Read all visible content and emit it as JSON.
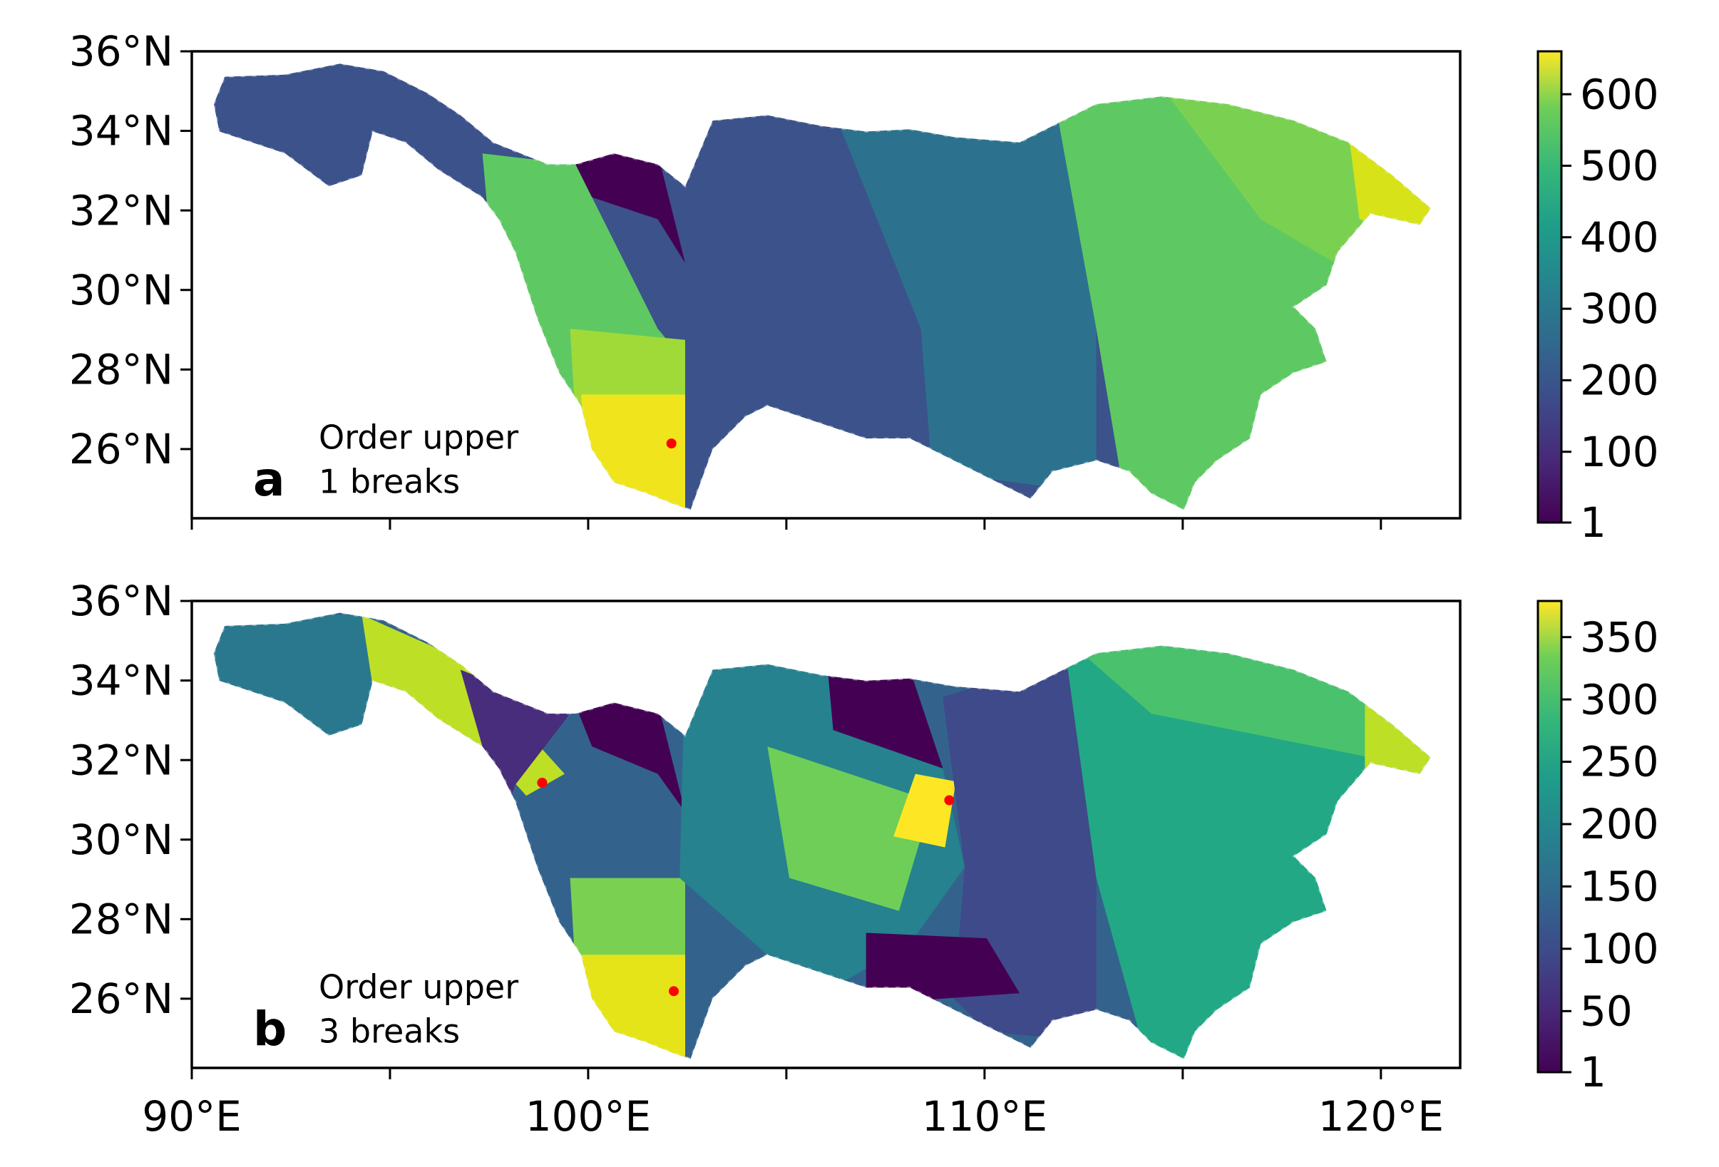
{
  "panels": [
    {
      "label": "a",
      "annotation": [
        "Order upper",
        "1 breaks"
      ],
      "xlim": [
        90,
        122
      ],
      "ylim": [
        24.26,
        36
      ],
      "xticks": [
        {
          "value": 90,
          "label": null
        },
        {
          "value": 95,
          "label": null
        },
        {
          "value": 100,
          "label": null
        },
        {
          "value": 105,
          "label": null
        },
        {
          "value": 110,
          "label": null
        },
        {
          "value": 115,
          "label": null
        },
        {
          "value": 120,
          "label": null
        }
      ],
      "yticks": [
        {
          "value": 26,
          "label": "26°N"
        },
        {
          "value": 28,
          "label": "28°N"
        },
        {
          "value": 30,
          "label": "30°N"
        },
        {
          "value": 32,
          "label": "32°N"
        },
        {
          "value": 34,
          "label": "34°N"
        },
        {
          "value": 36,
          "label": "36°N"
        }
      ],
      "breaks_lon": [
        102.1
      ],
      "breaks_lat": [
        26.14
      ],
      "break_color": "red",
      "colorbar": {
        "colormap": "viridis",
        "lim": [
          1,
          660
        ],
        "ticks": [
          1,
          100,
          200,
          300,
          400,
          500,
          600
        ]
      }
    },
    {
      "label": "b",
      "annotation": [
        "Order upper",
        "3 breaks"
      ],
      "xlim": [
        90,
        122
      ],
      "ylim": [
        24.26,
        36
      ],
      "xticks": [
        {
          "value": 90,
          "label": "90°E"
        },
        {
          "value": 95,
          "label": null
        },
        {
          "value": 100,
          "label": "100°E"
        },
        {
          "value": 105,
          "label": null
        },
        {
          "value": 110,
          "label": "110°E"
        },
        {
          "value": 115,
          "label": null
        },
        {
          "value": 120,
          "label": "120°E"
        }
      ],
      "yticks": [
        {
          "value": 26,
          "label": "26°N"
        },
        {
          "value": 28,
          "label": "28°N"
        },
        {
          "value": 30,
          "label": "30°N"
        },
        {
          "value": 32,
          "label": "32°N"
        },
        {
          "value": 34,
          "label": "34°N"
        },
        {
          "value": 36,
          "label": "36°N"
        }
      ],
      "breaks_lon": [
        98.84,
        109.11,
        102.16
      ],
      "breaks_lat": [
        31.43,
        30.99,
        26.19
      ],
      "break_color": "red",
      "colorbar": {
        "colormap": "viridis",
        "lim": [
          1,
          379
        ],
        "ticks": [
          1,
          50,
          100,
          150,
          200,
          250,
          300,
          350
        ]
      }
    }
  ]
}
